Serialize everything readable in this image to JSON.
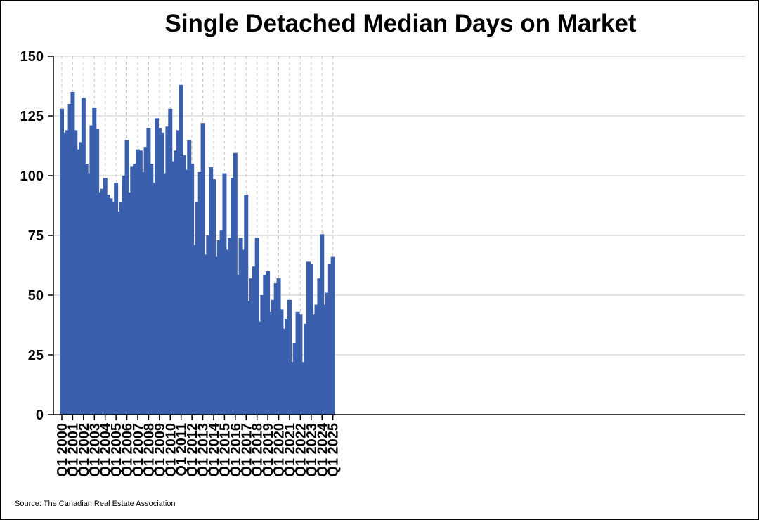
{
  "chart_data": {
    "type": "bar",
    "title": "Single Detached Median Days on Market",
    "xlabel": "",
    "ylabel": "",
    "ylim": [
      0,
      150
    ],
    "yticks": [
      0,
      25,
      50,
      75,
      100,
      125,
      150
    ],
    "grid": true,
    "bar_color": "#3a5fac",
    "tick_labels": [
      "Q1 2000",
      "Q1 2001",
      "Q1 2002",
      "Q1 2003",
      "Q1 2004",
      "Q1 2005",
      "Q1 2006",
      "Q1 2007",
      "Q1 2008",
      "Q1 2009",
      "Q1 2010",
      "Q1 2011",
      "Q1 2012",
      "Q1 2013",
      "Q1 2014",
      "Q1 2015",
      "Q1 2016",
      "Q1 2017",
      "Q1 2018",
      "Q1 2019",
      "Q1 2020",
      "Q1 2021",
      "Q1 2022",
      "Q1 2023",
      "Q1 2024",
      "Q1 2025"
    ],
    "values": [
      128,
      118,
      119,
      130,
      135,
      119,
      111,
      114,
      132.5,
      105,
      101,
      121,
      128.5,
      119.5,
      93,
      94.5,
      99,
      92,
      90.5,
      89,
      97,
      85,
      89,
      100,
      115,
      93,
      104,
      105,
      111,
      110.5,
      101.5,
      112,
      120,
      105,
      97,
      124,
      120,
      118,
      101,
      120.5,
      128,
      106,
      110.5,
      119,
      138,
      108.5,
      102.5,
      115,
      105,
      71,
      89,
      101.5,
      122,
      67,
      75,
      103.5,
      98.5,
      66,
      73,
      77,
      101,
      69,
      74,
      99,
      109.5,
      58.5,
      74,
      69,
      92,
      47.5,
      57,
      62,
      74,
      39,
      50,
      58.5,
      60,
      43,
      48,
      55,
      57,
      44,
      36,
      40,
      48,
      22,
      30,
      43,
      42,
      22,
      38,
      64,
      63,
      42,
      46,
      57,
      75.5,
      46,
      51,
      63,
      66
    ]
  },
  "footer": {
    "source": "Source: The Canadian Real Estate Association"
  }
}
